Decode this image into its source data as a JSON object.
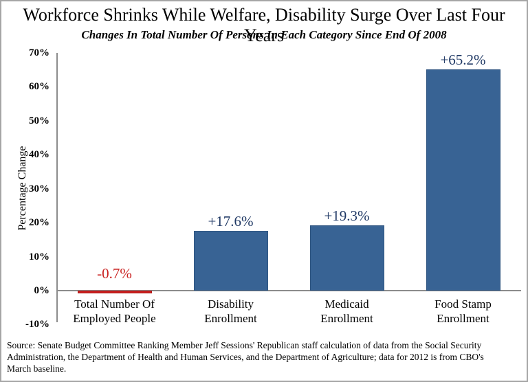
{
  "chart_data": {
    "type": "bar",
    "title": "Workforce Shrinks While Welfare, Disability Surge Over Last Four Years",
    "subtitle": "Changes In Total Number Of Persons In Each Category Since End Of 2008",
    "ylabel": "Percentage Change",
    "xlabel": "",
    "categories": [
      "Total Number Of\nEmployed People",
      "Disability\nEnrollment",
      "Medicaid\nEnrollment",
      "Food Stamp\nEnrollment"
    ],
    "values": [
      -0.7,
      17.6,
      19.3,
      65.2
    ],
    "data_labels": [
      "-0.7%",
      "+17.6%",
      "+19.3%",
      "+65.2%"
    ],
    "bar_colors": [
      "#c9201f",
      "#386394",
      "#386394",
      "#386394"
    ],
    "bar_border_colors": [
      "#b01818",
      "#2e5480",
      "#2e5480",
      "#2e5480"
    ],
    "label_colors": [
      "#c9201f",
      "#1f3864",
      "#1f3864",
      "#1f3864"
    ],
    "ylim": [
      -10,
      70
    ],
    "yticks": [
      {
        "label": "70%",
        "value": 70
      },
      {
        "label": "60%",
        "value": 60
      },
      {
        "label": "50%",
        "value": 50
      },
      {
        "label": "40%",
        "value": 40
      },
      {
        "label": "30%",
        "value": 30
      },
      {
        "label": "20%",
        "value": 20
      },
      {
        "label": "10%",
        "value": 10
      },
      {
        "label": "0%",
        "value": 0
      },
      {
        "label": "-10%",
        "value": -10
      }
    ],
    "grid": false,
    "legend": "none"
  },
  "source_note": "Source: Senate Budget Committee Ranking Member Jeff Sessions' Republican staff calculation of data from the Social Security\nAdministration, the Department of Health and Human Services, and the Department of Agriculture; data for 2012 is from CBO's\nMarch baseline.",
  "colors": {
    "background": "#ffffff",
    "frame_border": "#a6a6a6",
    "axis": "#8c8c8c",
    "bar_blue": "#386394",
    "bar_red": "#c9201f",
    "label_navy": "#1f3864",
    "label_red": "#c9201f"
  }
}
